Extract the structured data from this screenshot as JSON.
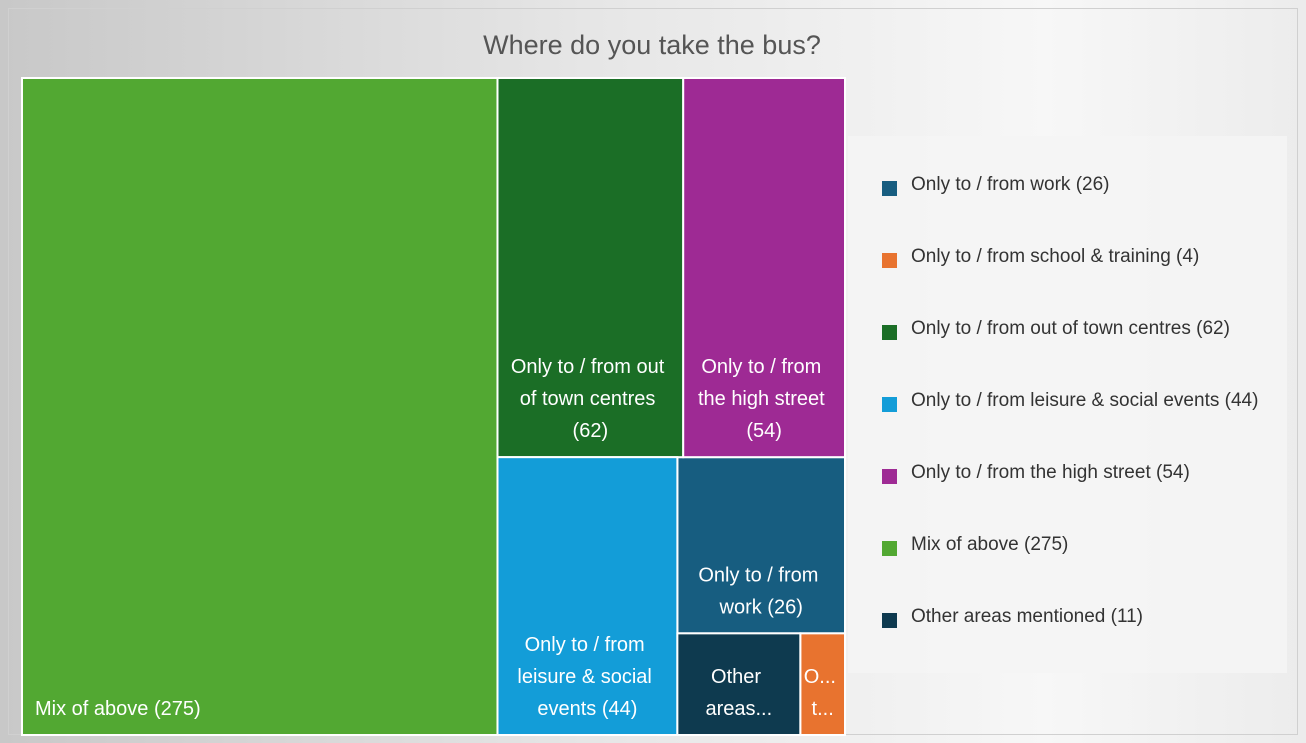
{
  "chart_data": {
    "type": "treemap",
    "title": "Where do you take the bus?",
    "categories": [
      "Only to / from work",
      "Only to / from school & training",
      "Only to / from out of town centres",
      "Only to / from leisure & social events",
      "Only to / from the high street",
      "Mix of above",
      "Other areas mentioned"
    ],
    "values": [
      26,
      4,
      62,
      44,
      54,
      275,
      11
    ],
    "value_labels": [
      "Only to / from work (26)",
      "O... t...",
      "Only to / from out of town centres (62)",
      "Only to / from leisure & social events (44)",
      "Only to / from the high street (54)",
      "Mix of above (275)",
      "Other areas..."
    ],
    "legend_labels": [
      "Only to / from work (26)",
      "Only to / from school & training (4)",
      "Only to / from out of town centres (62)",
      "Only to / from leisure & social events (44)",
      "Only to / from the high street (54)",
      "Mix of above (275)",
      "Other areas mentioned (11)"
    ],
    "colors": [
      "#175d80",
      "#e8732f",
      "#1b6e26",
      "#139dd8",
      "#9e2a94",
      "#52a832",
      "#0e3a4f"
    ],
    "legend_position": "right"
  }
}
